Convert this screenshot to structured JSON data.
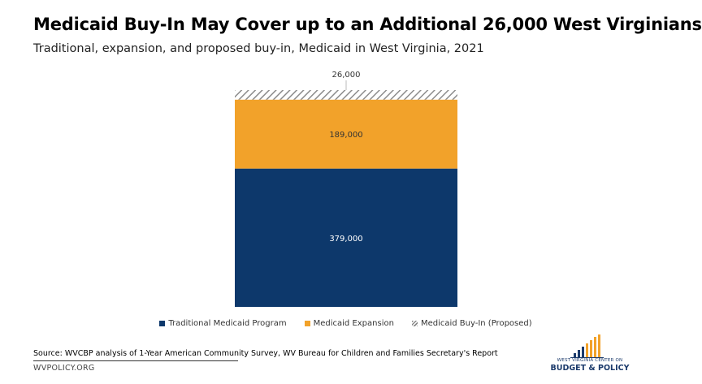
{
  "title": "Medicaid Buy-In May Cover up to an Additional 26,000 West Virginians",
  "subtitle": "Traditional, expansion, and proposed buy-in, Medicaid in West Virginia, 2021",
  "chart_data": {
    "type": "bar",
    "stacked": true,
    "categories": [
      ""
    ],
    "series": [
      {
        "name": "Traditional Medicaid Program",
        "values": [
          379000
        ],
        "label": "379,000",
        "color": "#0d386b",
        "pattern": "solid"
      },
      {
        "name": "Medicaid Expansion",
        "values": [
          189000
        ],
        "label": "189,000",
        "color": "#f2a22a",
        "pattern": "solid"
      },
      {
        "name": "Medicaid Buy-In (Proposed)",
        "values": [
          26000
        ],
        "label": "26,000",
        "color": "#8c8c8c",
        "pattern": "hatch"
      }
    ],
    "title": "Medicaid Buy-In May Cover up to an Additional 26,000 West Virginians",
    "xlabel": "",
    "ylabel": "",
    "ylim": [
      0,
      594000
    ],
    "grid": false,
    "legend": "bottom"
  },
  "footer": {
    "source": "Source: WVCBP analysis of 1-Year American Community Survey, WV Bureau for Children and Families Secretary's Report",
    "site": "WVPOLICY.ORG"
  },
  "logo": {
    "line1": "WEST VIRGINIA CENTER ON",
    "line2": "BUDGET & POLICY",
    "colors": {
      "navy": "#1b3a6b",
      "gold": "#f2a22a"
    }
  }
}
